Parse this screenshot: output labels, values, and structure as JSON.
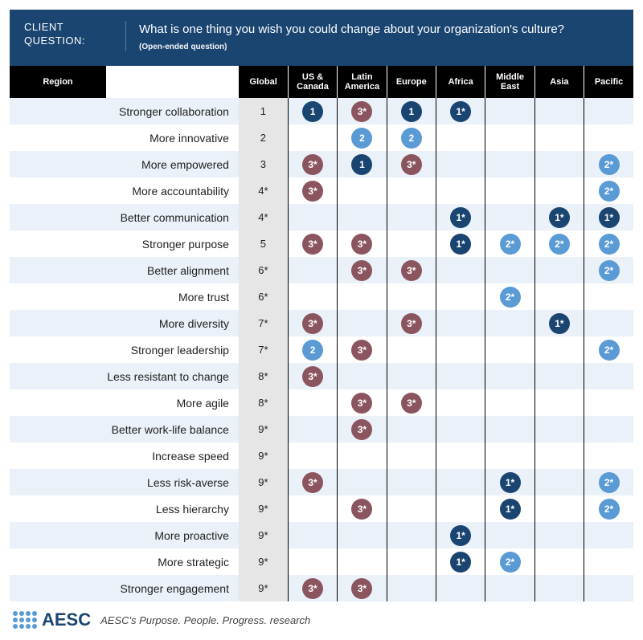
{
  "header": {
    "label_line1": "CLIENT",
    "label_line2": "QUESTION:",
    "question": "What is one thing you wish you could change about your organization's culture?",
    "sub": "(Open-ended question)",
    "bg_color": "#1a4571"
  },
  "columns": {
    "region_header": "Region",
    "headers": [
      "Global",
      "US & Canada",
      "Latin America",
      "Europe",
      "Africa",
      "Middle East",
      "Asia",
      "Pacific"
    ]
  },
  "rank_colors": {
    "1": "#1a4571",
    "2": "#5a9bd5",
    "3": "#8b5560"
  },
  "rows": [
    {
      "label": "Stronger collaboration",
      "global": "1",
      "cells": [
        {
          "r": "1"
        },
        {
          "r": "3",
          "s": true
        },
        {
          "r": "1"
        },
        {
          "r": "1",
          "s": true
        },
        null,
        null,
        null
      ]
    },
    {
      "label": "More innovative",
      "global": "2",
      "cells": [
        null,
        {
          "r": "2"
        },
        {
          "r": "2"
        },
        null,
        null,
        null,
        null
      ]
    },
    {
      "label": "More empowered",
      "global": "3",
      "cells": [
        {
          "r": "3",
          "s": true
        },
        {
          "r": "1"
        },
        {
          "r": "3",
          "s": true
        },
        null,
        null,
        null,
        {
          "r": "2",
          "s": true
        }
      ]
    },
    {
      "label": "More accountability",
      "global": "4*",
      "cells": [
        {
          "r": "3",
          "s": true
        },
        null,
        null,
        null,
        null,
        null,
        {
          "r": "2",
          "s": true
        }
      ]
    },
    {
      "label": "Better communication",
      "global": "4*",
      "cells": [
        null,
        null,
        null,
        {
          "r": "1",
          "s": true
        },
        null,
        {
          "r": "1",
          "s": true
        },
        {
          "r": "1",
          "s": true
        }
      ]
    },
    {
      "label": "Stronger purpose",
      "global": "5",
      "cells": [
        {
          "r": "3",
          "s": true
        },
        {
          "r": "3",
          "s": true
        },
        null,
        {
          "r": "1",
          "s": true
        },
        {
          "r": "2",
          "s": true
        },
        {
          "r": "2",
          "s": true
        },
        {
          "r": "2",
          "s": true
        }
      ]
    },
    {
      "label": "Better alignment",
      "global": "6*",
      "cells": [
        null,
        {
          "r": "3",
          "s": true
        },
        {
          "r": "3",
          "s": true
        },
        null,
        null,
        null,
        {
          "r": "2",
          "s": true
        }
      ]
    },
    {
      "label": "More trust",
      "global": "6*",
      "cells": [
        null,
        null,
        null,
        null,
        {
          "r": "2",
          "s": true
        },
        null,
        null
      ]
    },
    {
      "label": "More diversity",
      "global": "7*",
      "cells": [
        {
          "r": "3",
          "s": true
        },
        null,
        {
          "r": "3",
          "s": true
        },
        null,
        null,
        {
          "r": "1",
          "s": true
        },
        null
      ]
    },
    {
      "label": "Stronger leadership",
      "global": "7*",
      "cells": [
        {
          "r": "2"
        },
        {
          "r": "3",
          "s": true
        },
        null,
        null,
        null,
        null,
        {
          "r": "2",
          "s": true
        }
      ]
    },
    {
      "label": "Less resistant to change",
      "global": "8*",
      "cells": [
        {
          "r": "3",
          "s": true
        },
        null,
        null,
        null,
        null,
        null,
        null
      ]
    },
    {
      "label": "More agile",
      "global": "8*",
      "cells": [
        null,
        {
          "r": "3",
          "s": true
        },
        {
          "r": "3",
          "s": true
        },
        null,
        null,
        null,
        null
      ]
    },
    {
      "label": "Better work-life balance",
      "global": "9*",
      "cells": [
        null,
        {
          "r": "3",
          "s": true
        },
        null,
        null,
        null,
        null,
        null
      ]
    },
    {
      "label": "Increase speed",
      "global": "9*",
      "cells": [
        null,
        null,
        null,
        null,
        null,
        null,
        null
      ]
    },
    {
      "label": "Less risk-averse",
      "global": "9*",
      "cells": [
        {
          "r": "3",
          "s": true
        },
        null,
        null,
        null,
        {
          "r": "1",
          "s": true
        },
        null,
        {
          "r": "2",
          "s": true
        }
      ]
    },
    {
      "label": "Less hierarchy",
      "global": "9*",
      "cells": [
        null,
        {
          "r": "3",
          "s": true
        },
        null,
        null,
        {
          "r": "1",
          "s": true
        },
        null,
        {
          "r": "2",
          "s": true
        }
      ]
    },
    {
      "label": "More proactive",
      "global": "9*",
      "cells": [
        null,
        null,
        null,
        {
          "r": "1",
          "s": true
        },
        null,
        null,
        null
      ]
    },
    {
      "label": "More strategic",
      "global": "9*",
      "cells": [
        null,
        null,
        null,
        {
          "r": "1",
          "s": true
        },
        {
          "r": "2",
          "s": true
        },
        null,
        null
      ]
    },
    {
      "label": "Stronger engagement",
      "global": "9*",
      "cells": [
        {
          "r": "3",
          "s": true
        },
        {
          "r": "3",
          "s": true
        },
        null,
        null,
        null,
        null,
        null
      ]
    }
  ],
  "footer": {
    "logo_text": "AESC",
    "tagline": "AESC's Purpose. People. Progress. research"
  }
}
